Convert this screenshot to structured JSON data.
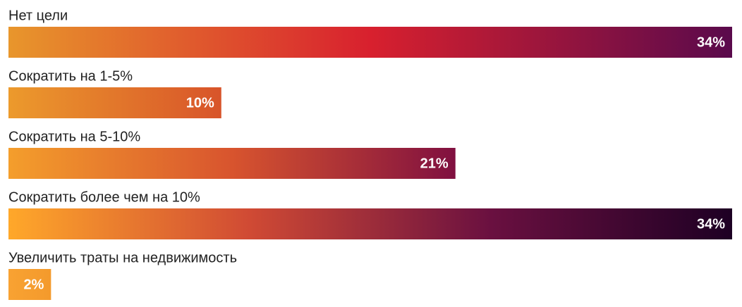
{
  "chart_data": {
    "type": "hbar",
    "categories": [
      "Нет цели",
      "Сократить на 1-5%",
      "Сократить на 5-10%",
      "Сократить более чем на 10%",
      "Увеличить траты на недвижимость"
    ],
    "values": [
      34,
      10,
      21,
      34,
      2
    ],
    "value_labels": [
      "34%",
      "10%",
      "21%",
      "34%",
      "2%"
    ],
    "colors": [
      [
        "#e8962c",
        "#d8202e",
        "#5a0a4c"
      ],
      [
        "#ec9a2c",
        "#d8542a"
      ],
      [
        "#f49e2c",
        "#d8542e",
        "#801040"
      ],
      [
        "#ffa82a",
        "#d04a34",
        "#6a1040",
        "#1e0024"
      ],
      [
        "#f8a232",
        "#f49a2c"
      ]
    ]
  }
}
